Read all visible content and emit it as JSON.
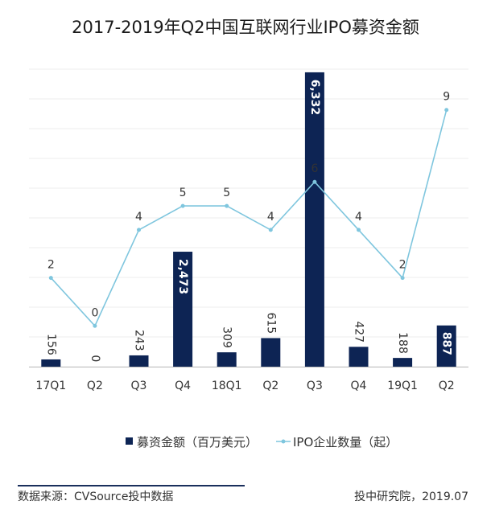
{
  "title": "2017-2019年Q2中国互联网行业IPO募资金额",
  "footer": {
    "source": "数据来源：CVSource投中数据",
    "credit": "投中研究院，2019.07"
  },
  "chart_data": {
    "type": "bar",
    "categories": [
      "17Q1",
      "Q2",
      "Q3",
      "Q4",
      "18Q1",
      "Q2",
      "Q3",
      "Q4",
      "19Q1",
      "Q2"
    ],
    "series": [
      {
        "name": "募资金额（百万美元）",
        "type": "bar",
        "axis": "left",
        "color": "#0d2454",
        "values": [
          156,
          0,
          243,
          2473,
          309,
          615,
          6332,
          427,
          188,
          887
        ],
        "labels": [
          "156",
          "0",
          "243",
          "2,473",
          "309",
          "615",
          "6,332",
          "427",
          "188",
          "887"
        ]
      },
      {
        "name": "IPO企业数量（起）",
        "type": "line",
        "axis": "right",
        "color": "#7fc6de",
        "values": [
          2,
          0,
          4,
          5,
          5,
          4,
          6,
          4,
          2,
          9
        ],
        "labels": [
          "2",
          "0",
          "4",
          "5",
          "5",
          "4",
          "6",
          "4",
          "2",
          "9"
        ]
      }
    ],
    "ylim": [
      0,
      6400
    ],
    "y2lim": [
      -1.7,
      10.7
    ],
    "grid": true,
    "legend": "bottom"
  }
}
